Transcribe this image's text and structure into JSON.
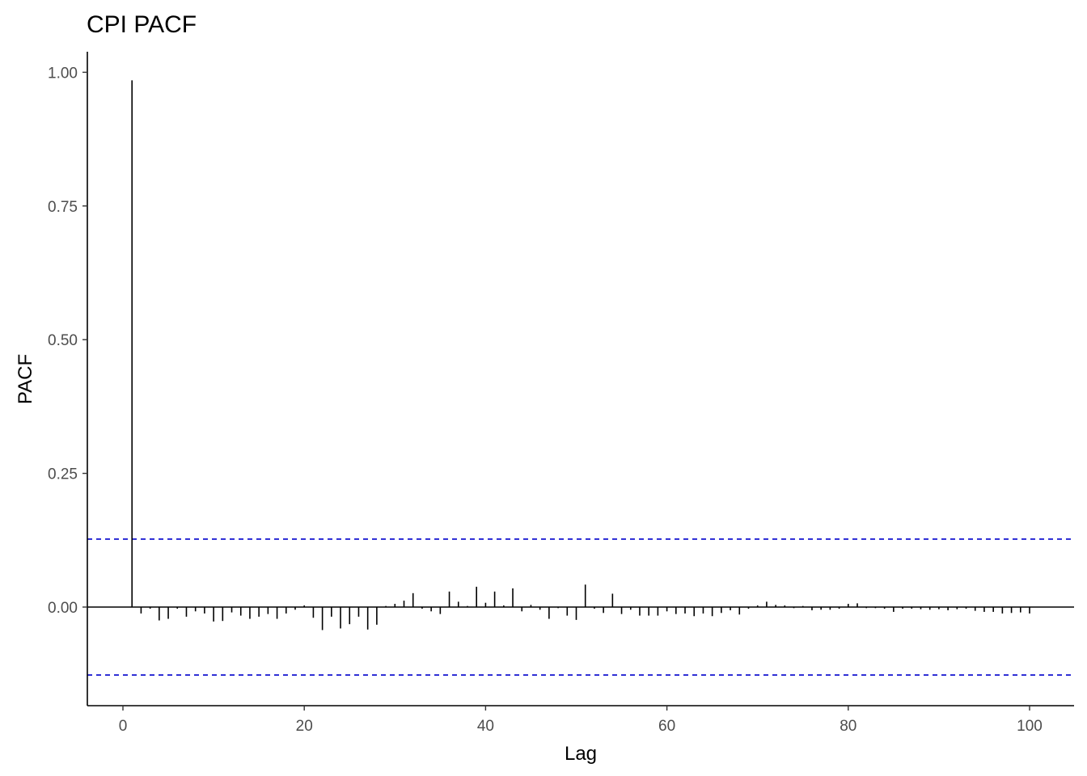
{
  "chart_data": {
    "type": "bar",
    "title": "CPI PACF",
    "xlabel": "Lag",
    "ylabel": "PACF",
    "xlim": [
      -4,
      105
    ],
    "ylim": [
      -0.185,
      1.04
    ],
    "x_ticks": [
      0,
      20,
      40,
      60,
      80,
      100
    ],
    "x_tick_labels": [
      "0",
      "20",
      "40",
      "60",
      "80",
      "100"
    ],
    "y_ticks": [
      0,
      0.25,
      0.5,
      0.75,
      1.0
    ],
    "y_tick_labels": [
      "0.00",
      "0.25",
      "0.50",
      "0.75",
      "1.00"
    ],
    "confidence_bounds": [
      0.127,
      -0.127
    ],
    "confidence_color": "#0000cc",
    "bar_color": "#000000",
    "grid": false,
    "lags": [
      1,
      2,
      3,
      4,
      5,
      6,
      7,
      8,
      9,
      10,
      11,
      12,
      13,
      14,
      15,
      16,
      17,
      18,
      19,
      20,
      21,
      22,
      23,
      24,
      25,
      26,
      27,
      28,
      29,
      30,
      31,
      32,
      33,
      34,
      35,
      36,
      37,
      38,
      39,
      40,
      41,
      42,
      43,
      44,
      45,
      46,
      47,
      48,
      49,
      50,
      51,
      52,
      53,
      54,
      55,
      56,
      57,
      58,
      59,
      60,
      61,
      62,
      63,
      64,
      65,
      66,
      67,
      68,
      69,
      70,
      71,
      72,
      73,
      74,
      75,
      76,
      77,
      78,
      79,
      80,
      81,
      82,
      83,
      84,
      85,
      86,
      87,
      88,
      89,
      90,
      91,
      92,
      93,
      94,
      95,
      96,
      97,
      98,
      99,
      100
    ],
    "values": [
      0.985,
      -0.012,
      -0.003,
      -0.025,
      -0.022,
      -0.003,
      -0.018,
      -0.008,
      -0.012,
      -0.027,
      -0.026,
      -0.01,
      -0.016,
      -0.022,
      -0.018,
      -0.013,
      -0.022,
      -0.012,
      -0.005,
      0.003,
      -0.02,
      -0.043,
      -0.018,
      -0.04,
      -0.032,
      -0.018,
      -0.042,
      -0.033,
      0.002,
      0.006,
      0.012,
      0.026,
      -0.003,
      -0.008,
      -0.013,
      0.029,
      0.01,
      0.002,
      0.038,
      0.008,
      0.029,
      0.003,
      0.035,
      -0.008,
      0.004,
      -0.005,
      -0.022,
      -0.002,
      -0.016,
      -0.024,
      0.042,
      -0.003,
      -0.011,
      0.025,
      -0.013,
      -0.005,
      -0.016,
      -0.016,
      -0.016,
      -0.008,
      -0.013,
      -0.012,
      -0.017,
      -0.012,
      -0.017,
      -0.011,
      -0.006,
      -0.014,
      -0.003,
      0.003,
      0.01,
      0.004,
      0.003,
      -0.002,
      0.002,
      -0.006,
      -0.005,
      -0.005,
      -0.003,
      0.006,
      0.007,
      -0.002,
      -0.002,
      -0.003,
      -0.009,
      -0.003,
      -0.003,
      -0.004,
      -0.005,
      -0.004,
      -0.006,
      -0.004,
      -0.003,
      -0.007,
      -0.009,
      -0.009,
      -0.012,
      -0.011,
      -0.01,
      -0.012
    ]
  }
}
